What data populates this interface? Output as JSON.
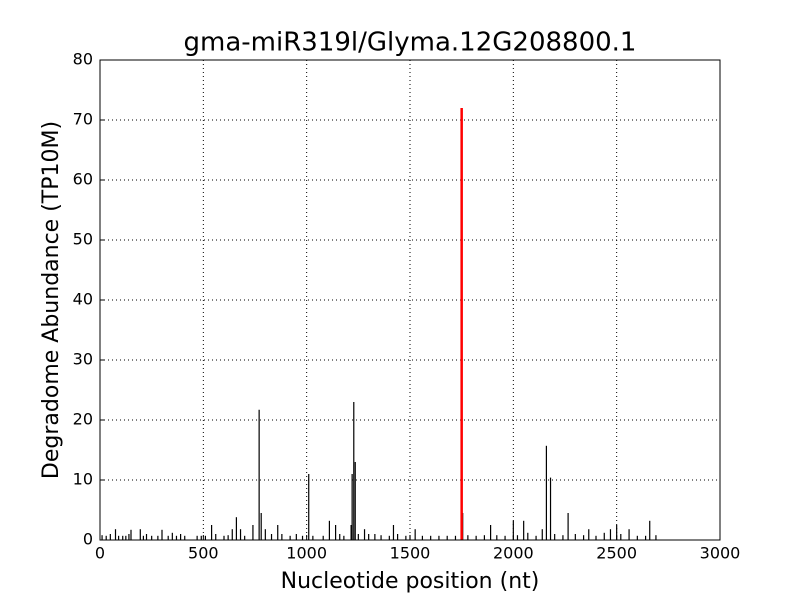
{
  "chart_data": {
    "type": "spike",
    "title": "gma-miR319l/Glyma.12G208800.1",
    "xlabel": "Nucleotide position (nt)",
    "ylabel": "Degradome Abundance (TP10M)",
    "xlim": [
      0,
      3000
    ],
    "xticks": [
      0,
      500,
      1000,
      1500,
      2000,
      2500,
      3000
    ],
    "ylim": [
      0,
      80
    ],
    "yticks": [
      0,
      10,
      20,
      30,
      40,
      50,
      60,
      70,
      80
    ],
    "grid": true,
    "series": [
      {
        "color": "#000000",
        "x": [
          10,
          30,
          50,
          75,
          90,
          110,
          125,
          140,
          150,
          195,
          210,
          225,
          250,
          280,
          300,
          330,
          350,
          370,
          390,
          410,
          470,
          490,
          510,
          540,
          560,
          600,
          620,
          640,
          660,
          680,
          700,
          740,
          770,
          780,
          800,
          830,
          860,
          880,
          920,
          950,
          980,
          1010,
          1030,
          1080,
          1110,
          1140,
          1160,
          1180,
          1215,
          1220,
          1228,
          1235,
          1250,
          1280,
          1300,
          1330,
          1360,
          1400,
          1420,
          1440,
          1480,
          1500,
          1525,
          1560,
          1600,
          1640,
          1680,
          1720,
          1755,
          1780,
          1820,
          1860,
          1890,
          1920,
          1960,
          2000,
          2020,
          2050,
          2070,
          2110,
          2140,
          2160,
          2180,
          2200,
          2240,
          2265,
          2300,
          2340,
          2365,
          2400,
          2440,
          2470,
          2500,
          2520,
          2560,
          2600,
          2640,
          2660,
          2690
        ],
        "values": [
          0.8,
          0.7,
          1,
          1.8,
          0.7,
          0.7,
          0.7,
          1,
          1.7,
          1.8,
          0.7,
          1,
          0.7,
          0.7,
          1.7,
          0.7,
          1.2,
          0.7,
          1,
          0.7,
          0.7,
          0.7,
          0.7,
          2.5,
          1,
          0.7,
          0.8,
          1.8,
          3.8,
          1.8,
          0.7,
          2.5,
          21.7,
          4.5,
          1.8,
          1,
          2.5,
          1,
          0.7,
          1,
          0.7,
          11,
          0.7,
          0.7,
          3.2,
          2.5,
          1,
          0.7,
          2.5,
          11,
          23,
          13,
          1,
          1.8,
          1,
          1,
          0.8,
          0.7,
          2.5,
          1,
          0.7,
          0.8,
          1.8,
          0.7,
          0.7,
          0.7,
          0.7,
          0.7,
          4.5,
          0.8,
          0.7,
          0.8,
          2.5,
          0.8,
          0.7,
          3.2,
          0.8,
          3.2,
          1.2,
          0.7,
          1.8,
          15.7,
          10.4,
          1,
          0.8,
          4.5,
          1,
          0.8,
          1.8,
          0.7,
          1.2,
          1.8,
          2.5,
          1,
          1.8,
          0.7,
          0.7,
          3.2,
          0.8
        ]
      },
      {
        "color": "#ff0000",
        "x": [
          1750
        ],
        "values": [
          72
        ]
      }
    ]
  }
}
